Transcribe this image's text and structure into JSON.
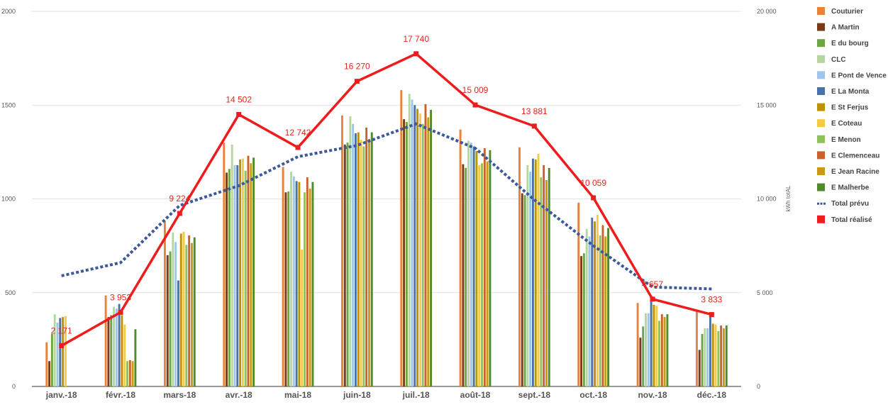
{
  "chart_data": {
    "type": "bar",
    "title": "",
    "xlabel": "",
    "ylabel": "",
    "y2label": "kWh totAL",
    "ylim": [
      0,
      2000
    ],
    "y2lim": [
      0,
      20000
    ],
    "yticks": [
      "0",
      "500",
      "1000",
      "1500",
      "2000"
    ],
    "y2ticks": [
      "0",
      "5 000",
      "10 000",
      "15 000",
      "20 000"
    ],
    "categories": [
      "janv.-18",
      "févr.-18",
      "mars-18",
      "avr.-18",
      "mai-18",
      "juin-18",
      "juil.-18",
      "août-18",
      "sept.-18",
      "oct.-18",
      "nov.-18",
      "déc.-18"
    ],
    "grid": true,
    "legend_position": "right",
    "series": [
      {
        "name": "Couturier",
        "color": "#e8813a",
        "values": [
          235,
          485,
          880,
          1300,
          1170,
          1445,
          1580,
          1370,
          1275,
          980,
          445,
          400
        ]
      },
      {
        "name": "A Martin",
        "color": "#7b3b16",
        "values": [
          135,
          370,
          700,
          1140,
          1035,
          1290,
          1425,
          1185,
          1030,
          695,
          260,
          195
        ]
      },
      {
        "name": "E du bourg",
        "color": "#6da544",
        "values": [
          280,
          380,
          720,
          1160,
          1040,
          1300,
          1410,
          1165,
          1020,
          710,
          320,
          280
        ]
      },
      {
        "name": "CLC",
        "color": "#b5d6a0",
        "values": [
          385,
          425,
          820,
          1290,
          1145,
          1440,
          1560,
          1310,
          1180,
          840,
          390,
          310
        ]
      },
      {
        "name": "E Pont de Vence",
        "color": "#9fc5e8",
        "values": [
          340,
          415,
          770,
          1180,
          1120,
          1400,
          1530,
          1300,
          1145,
          800,
          390,
          310
        ]
      },
      {
        "name": "E La Monta",
        "color": "#4a72a8",
        "values": [
          365,
          440,
          565,
          1180,
          1095,
          1350,
          1500,
          1280,
          1215,
          900,
          455,
          375
        ]
      },
      {
        "name": "E St Ferjus",
        "color": "#bf9000",
        "values": [
          370,
          380,
          815,
          1210,
          1090,
          1355,
          1480,
          1255,
          1210,
          880,
          435,
          335
        ]
      },
      {
        "name": "E Coteau",
        "color": "#f6c945",
        "values": [
          375,
          330,
          825,
          1215,
          730,
          1315,
          1455,
          1180,
          1240,
          915,
          430,
          330
        ]
      },
      {
        "name": "E Menon",
        "color": "#8fc15d",
        "values": [
          0,
          135,
          755,
          1150,
          1035,
          1280,
          1400,
          1190,
          1115,
          805,
          350,
          295
        ]
      },
      {
        "name": "E Clemenceau",
        "color": "#c8612b",
        "values": [
          0,
          140,
          805,
          1230,
          1115,
          1380,
          1505,
          1270,
          1180,
          860,
          385,
          325
        ]
      },
      {
        "name": "E Jean Racine",
        "color": "#c99a10",
        "values": [
          0,
          135,
          765,
          1190,
          1055,
          1320,
          1435,
          1200,
          1100,
          800,
          370,
          310
        ]
      },
      {
        "name": "E Malherbe",
        "color": "#4f8a2b",
        "values": [
          0,
          305,
          795,
          1220,
          1090,
          1355,
          1475,
          1260,
          1165,
          845,
          385,
          325
        ]
      }
    ],
    "lines": [
      {
        "name": "Total prévu",
        "color": "#3c5a9a",
        "style": "dotted",
        "axis": "right",
        "values": [
          5900,
          6600,
          9650,
          10700,
          12250,
          12850,
          14000,
          12700,
          9950,
          7500,
          5300,
          5200
        ]
      },
      {
        "name": "Total réalisé",
        "color": "#ee1c1c",
        "style": "solid",
        "axis": "right",
        "values": [
          2171,
          3953,
          9224,
          14502,
          12742,
          16270,
          17740,
          15009,
          13881,
          10059,
          4657,
          3833
        ]
      }
    ],
    "data_labels": [
      "2 171",
      "3 953",
      "9 224",
      "14 502",
      "12 742",
      "16 270",
      "17 740",
      "15 009",
      "13 881",
      "10 059",
      "4 657",
      "3 833"
    ]
  }
}
